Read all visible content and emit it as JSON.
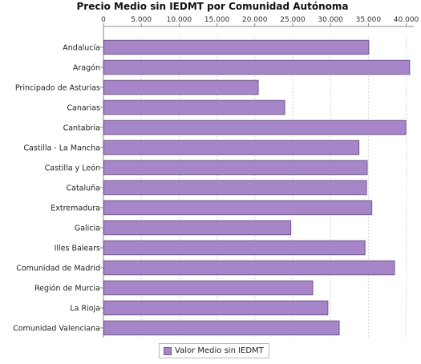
{
  "chart_data": {
    "type": "bar",
    "orientation": "horizontal",
    "title": "Precio Medio sin IEDMT por Comunidad Autónoma",
    "xlim": [
      0,
      41000
    ],
    "x_ticks": [
      "0",
      "5.000",
      "10.000",
      "15.000",
      "20.000",
      "25.000",
      "30.000",
      "35.000",
      "40.000"
    ],
    "x_tick_values": [
      0,
      5000,
      10000,
      15000,
      20000,
      25000,
      30000,
      35000,
      40000
    ],
    "x_axis_position": "top",
    "grid": true,
    "legend_position": "bottom",
    "categories": [
      "Andalucía",
      "Aragón",
      "Principado de Asturias",
      "Canarias",
      "Cantabria",
      "Castilla - La Mancha",
      "Castilla y León",
      "Cataluña",
      "Extremadura",
      "Galicia",
      "Illes Balears",
      "Comunidad de Madrid",
      "Región de Murcia",
      "La Rioja",
      "Comunidad Valenciana"
    ],
    "series": [
      {
        "name": "Valor Medio sin IEDMT",
        "color": "#a686c8",
        "values": [
          35000,
          40400,
          20400,
          23900,
          39900,
          33700,
          34800,
          34700,
          35400,
          24700,
          34500,
          38400,
          27600,
          29600,
          31100
        ]
      }
    ]
  },
  "colors": {
    "bar_fill": "#a686c8",
    "bar_stroke": "#6f5a8a",
    "grid": "#d4d4d4",
    "axis": "#888888",
    "legend_text": "#222222"
  }
}
